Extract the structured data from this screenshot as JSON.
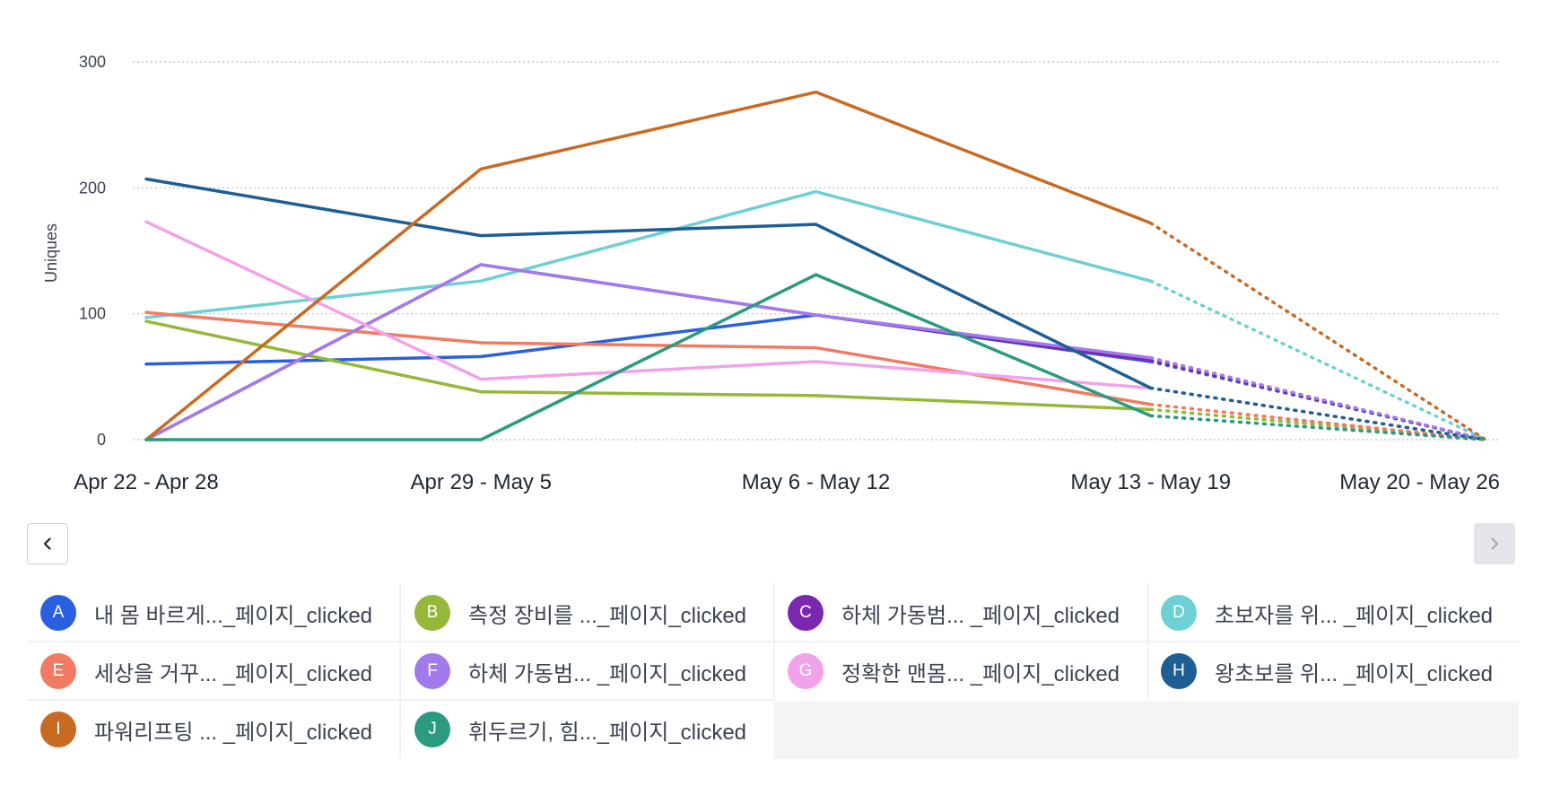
{
  "chart_data": {
    "type": "line",
    "ylabel": "Uniques",
    "xlabel": "",
    "ylim": [
      0,
      300
    ],
    "yticks": [
      0,
      100,
      200,
      300
    ],
    "categories": [
      "Apr 22 - Apr 28",
      "Apr 29 - May 5",
      "May 6 - May 12",
      "May 13 - May 19",
      "May 20 - May 26"
    ],
    "incomplete_from_index": 3,
    "grid": true,
    "series": [
      {
        "letter": "A",
        "name": "내 몸 바르게..._페이지_clicked",
        "color": "#2a5fe0",
        "values": [
          60,
          66,
          99,
          62,
          0
        ]
      },
      {
        "letter": "B",
        "name": "측정 장비를 ..._페이지_clicked",
        "color": "#95b83a",
        "values": [
          94,
          38,
          35,
          24,
          0
        ]
      },
      {
        "letter": "C",
        "name": "하체 가동범... _페이지_clicked",
        "color": "#7b27b0",
        "values": [
          0,
          139,
          99,
          63,
          0
        ]
      },
      {
        "letter": "D",
        "name": "초보자를 위... _페이지_clicked",
        "color": "#6dd0d4",
        "values": [
          97,
          126,
          197,
          126,
          0
        ]
      },
      {
        "letter": "E",
        "name": "세상을 거꾸... _페이지_clicked",
        "color": "#f07a62",
        "values": [
          101,
          77,
          73,
          28,
          0
        ]
      },
      {
        "letter": "F",
        "name": "하체 가동범... _페이지_clicked",
        "color": "#a37aeb",
        "values": [
          0,
          139,
          99,
          65,
          0
        ]
      },
      {
        "letter": "G",
        "name": "정확한 맨몸... _페이지_clicked",
        "color": "#f2a2ea",
        "values": [
          173,
          48,
          62,
          41,
          0
        ]
      },
      {
        "letter": "H",
        "name": "왕초보를 위... _페이지_clicked",
        "color": "#1d5f94",
        "values": [
          207,
          162,
          171,
          41,
          0
        ]
      },
      {
        "letter": "I",
        "name": "파워리프팅 ... _페이지_clicked",
        "color": "#c96a22",
        "values": [
          0,
          215,
          276,
          172,
          0
        ]
      },
      {
        "letter": "J",
        "name": "휘두르기, 힘..._페이지_clicked",
        "color": "#2a9a80",
        "values": [
          0,
          0,
          131,
          19,
          0
        ]
      }
    ]
  },
  "nav": {
    "prev_icon": "chevron-left-icon",
    "next_icon": "chevron-right-icon"
  }
}
